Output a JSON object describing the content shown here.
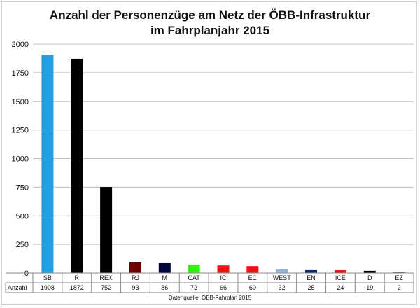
{
  "chart_data": {
    "type": "bar",
    "title": "Anzahl der Personenzüge am Netz der ÖBB-Infrastruktur",
    "subtitle": "im Fahrplanjahr 2015",
    "categories": [
      "SB",
      "R",
      "REX",
      "RJ",
      "M",
      "CAT",
      "IC",
      "EC",
      "WEST",
      "EN",
      "ICE",
      "D",
      "EZ"
    ],
    "series": [
      {
        "name": "Anzahl",
        "values": [
          1908,
          1872,
          752,
          93,
          86,
          72,
          66,
          60,
          32,
          25,
          24,
          19,
          2
        ],
        "colors": [
          "#1ea0e6",
          "#000000",
          "#000000",
          "#6b0000",
          "#00063a",
          "#33ee11",
          "#ee1111",
          "#ee1111",
          "#8fb4dc",
          "#0b2a6e",
          "#ee1111",
          "#000000",
          "#000000"
        ]
      }
    ],
    "yticks": [
      "0",
      "250",
      "500",
      "750",
      "1000",
      "1250",
      "1500",
      "1750",
      "2000"
    ],
    "ylim": [
      0,
      2000
    ],
    "grid": true,
    "legend": "data-table",
    "source": "Datenquelle: ÖBB-Fahrplan 2015"
  }
}
